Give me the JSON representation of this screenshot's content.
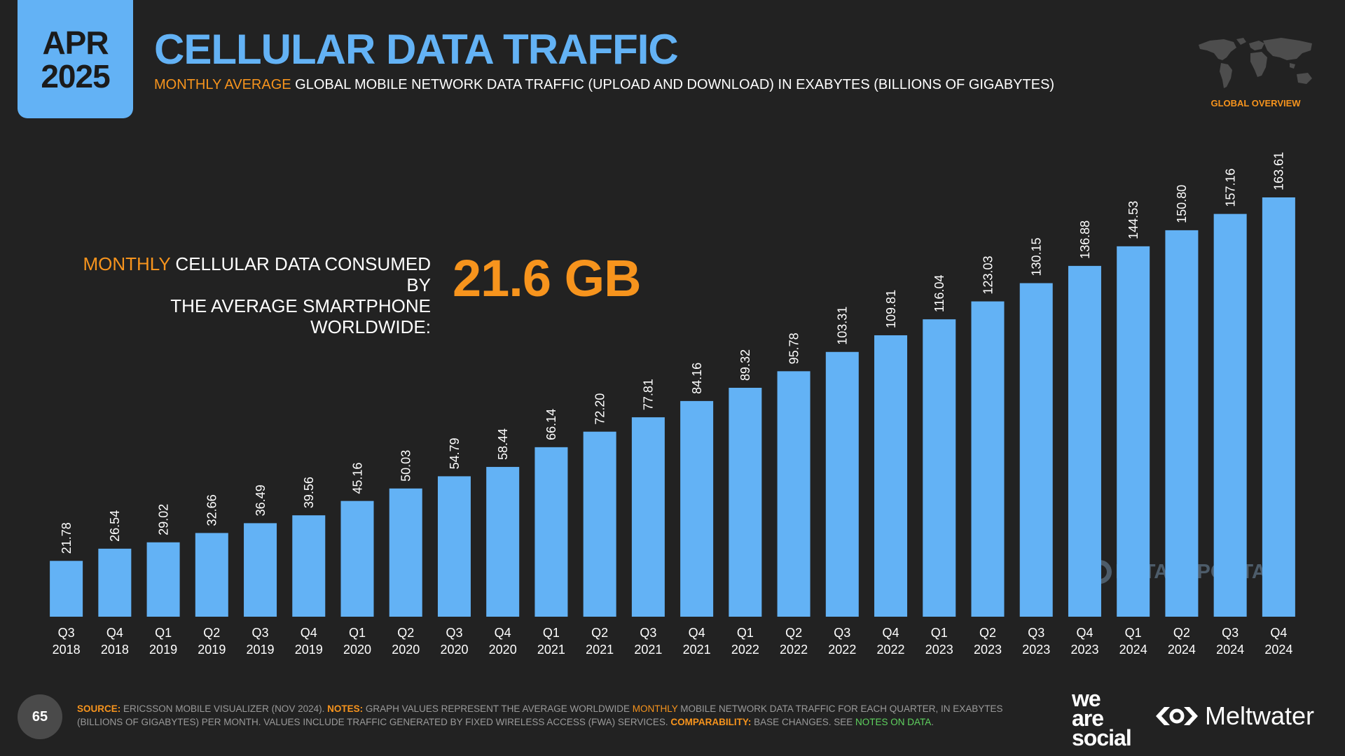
{
  "badge": {
    "month": "APR",
    "year": "2025"
  },
  "header": {
    "title": "CELLULAR DATA TRAFFIC",
    "subtitle_highlight": "MONTHLY AVERAGE",
    "subtitle_rest": " GLOBAL MOBILE NETWORK DATA TRAFFIC (UPLOAD AND DOWNLOAD) IN EXABYTES (BILLIONS OF GIGABYTES)"
  },
  "map_caption": "GLOBAL OVERVIEW",
  "stat": {
    "label_highlight": "MONTHLY",
    "label_line1_rest": " CELLULAR DATA CONSUMED BY",
    "label_line2": "THE AVERAGE SMARTPHONE WORLDWIDE:",
    "value": "21.6 GB"
  },
  "watermark": "DATAREPORTAL",
  "chart_data": {
    "type": "bar",
    "categories": [
      "Q3 2018",
      "Q4 2018",
      "Q1 2019",
      "Q2 2019",
      "Q3 2019",
      "Q4 2019",
      "Q1 2020",
      "Q2 2020",
      "Q3 2020",
      "Q4 2020",
      "Q1 2021",
      "Q2 2021",
      "Q3 2021",
      "Q4 2021",
      "Q1 2022",
      "Q2 2022",
      "Q3 2022",
      "Q4 2022",
      "Q1 2023",
      "Q2 2023",
      "Q3 2023",
      "Q4 2023",
      "Q1 2024",
      "Q2 2024",
      "Q3 2024",
      "Q4 2024"
    ],
    "values": [
      21.78,
      26.54,
      29.02,
      32.66,
      36.49,
      39.56,
      45.16,
      50.03,
      54.79,
      58.44,
      66.14,
      72.2,
      77.81,
      84.16,
      89.32,
      95.78,
      103.31,
      109.81,
      116.04,
      123.03,
      130.15,
      136.88,
      144.53,
      150.8,
      157.16,
      163.61
    ],
    "value_labels": [
      "21.78",
      "26.54",
      "29.02",
      "32.66",
      "36.49",
      "39.56",
      "45.16",
      "50.03",
      "54.79",
      "58.44",
      "66.14",
      "72.20",
      "77.81",
      "84.16",
      "89.32",
      "95.78",
      "103.31",
      "109.81",
      "116.04",
      "123.03",
      "130.15",
      "136.88",
      "144.53",
      "150.80",
      "157.16",
      "163.61"
    ],
    "ylim": [
      0,
      163.61
    ],
    "bar_color": "#63b2f5",
    "grid": false
  },
  "footer": {
    "page_number": "65",
    "source_label": "SOURCE:",
    "source_text": " ERICSSON MOBILE VISUALIZER (NOV 2024). ",
    "notes_label": "NOTES:",
    "notes_text_a": " GRAPH VALUES REPRESENT THE AVERAGE WORLDWIDE ",
    "notes_highlight": "MONTHLY",
    "notes_text_b": " MOBILE NETWORK DATA TRAFFIC FOR EACH QUARTER, IN EXABYTES (BILLIONS OF GIGABYTES) PER MONTH. VALUES INCLUDE TRAFFIC GENERATED BY FIXED WIRELESS ACCESS (FWA) SERVICES. ",
    "comparability_label": "COMPARABILITY:",
    "comparability_text": " BASE CHANGES. SEE ",
    "notes_link": "NOTES ON DATA",
    "end": "."
  },
  "brands": {
    "was_line1": "we",
    "was_line2": "are",
    "was_line3": "social",
    "meltwater": "Meltwater"
  },
  "colors": {
    "accent_blue": "#63b2f5",
    "accent_orange": "#f7941d",
    "background": "#222222",
    "link_green": "#5fd35f"
  },
  "icons": {
    "map": "world-map-icon",
    "meltwater": "meltwater-logo-icon",
    "watermark": "datareportal-logo-icon"
  }
}
